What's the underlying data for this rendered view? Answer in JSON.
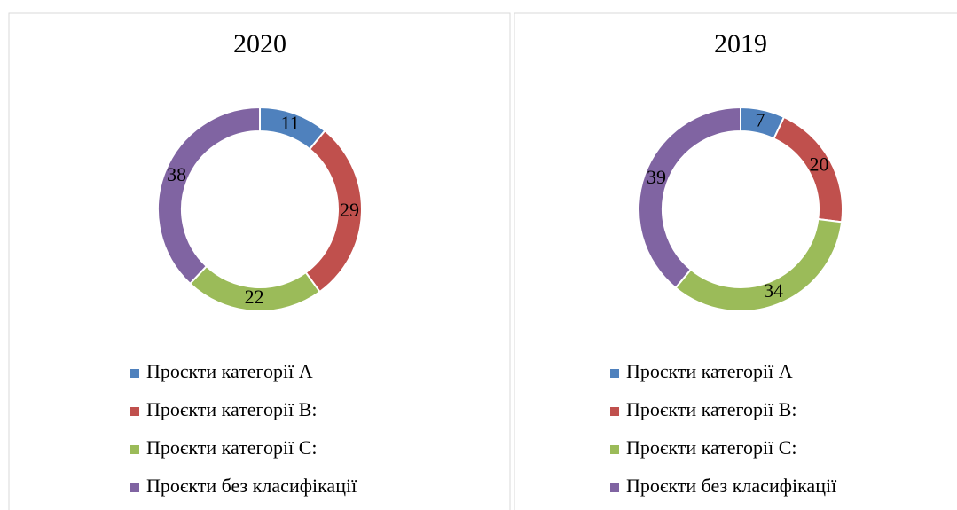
{
  "chart_data": [
    {
      "type": "donut",
      "title": "2020",
      "categories": [
        "Проєкти категорії А",
        "Проєкти категорії В:",
        "Проєкти категорії С:",
        "Проєкти без класифікації"
      ],
      "values": [
        11,
        29,
        22,
        38
      ],
      "colors": [
        "#4f81bd",
        "#c0504d",
        "#9bbb59",
        "#8064a2"
      ]
    },
    {
      "type": "donut",
      "title": "2019",
      "categories": [
        "Проєкти категорії А",
        "Проєкти категорії В:",
        "Проєкти категорії С:",
        "Проєкти без класифікації"
      ],
      "values": [
        7,
        20,
        34,
        39
      ],
      "colors": [
        "#4f81bd",
        "#c0504d",
        "#9bbb59",
        "#8064a2"
      ]
    }
  ]
}
